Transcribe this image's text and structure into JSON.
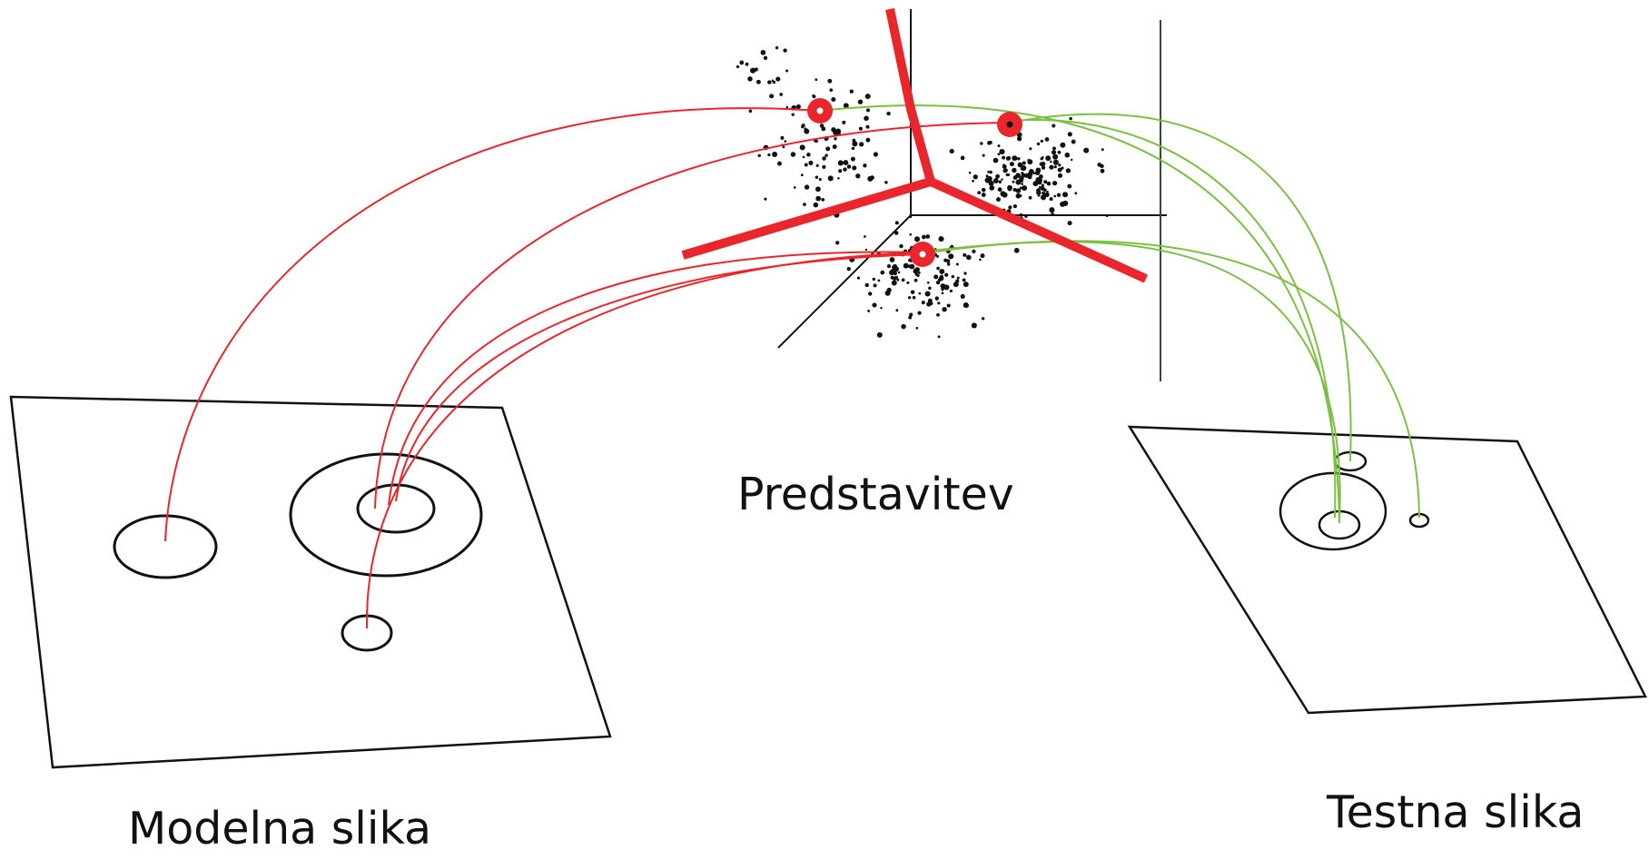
{
  "labels": {
    "model_image": "Modelna slika",
    "representation": "Predstavitev",
    "test_image": "Testna slika"
  },
  "colors": {
    "outline": "#111111",
    "model_link": "#e8262c",
    "test_link": "#7ac143",
    "partition": "#e8262c",
    "vertical_axis": "#2f4f2f",
    "points": "#111111"
  }
}
